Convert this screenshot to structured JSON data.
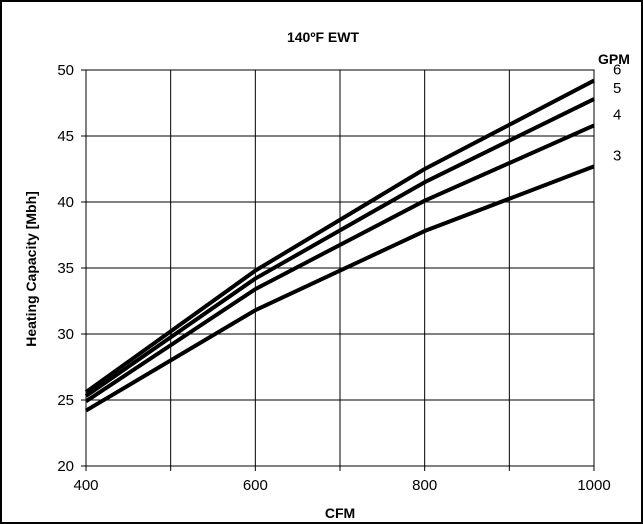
{
  "chart_data": {
    "type": "line",
    "title": "140ºF EWT",
    "xlabel": "CFM",
    "ylabel": "Heating Capacity [Mbh]",
    "xlim": [
      400,
      1000
    ],
    "ylim": [
      20,
      50
    ],
    "x_ticks": [
      400,
      600,
      800,
      1000
    ],
    "y_ticks": [
      20,
      25,
      30,
      35,
      40,
      45,
      50
    ],
    "grid": true,
    "legend_title": "GPM",
    "legend_placement": "right, at line ends",
    "x": [
      400,
      600,
      800,
      1000
    ],
    "series": [
      {
        "name": "6",
        "values": [
          25.6,
          34.8,
          42.5,
          49.2
        ]
      },
      {
        "name": "5",
        "values": [
          25.3,
          34.2,
          41.5,
          47.8
        ]
      },
      {
        "name": "4",
        "values": [
          24.9,
          33.4,
          40.1,
          45.8
        ]
      },
      {
        "name": "3",
        "values": [
          24.2,
          31.8,
          37.8,
          42.7
        ]
      }
    ]
  }
}
